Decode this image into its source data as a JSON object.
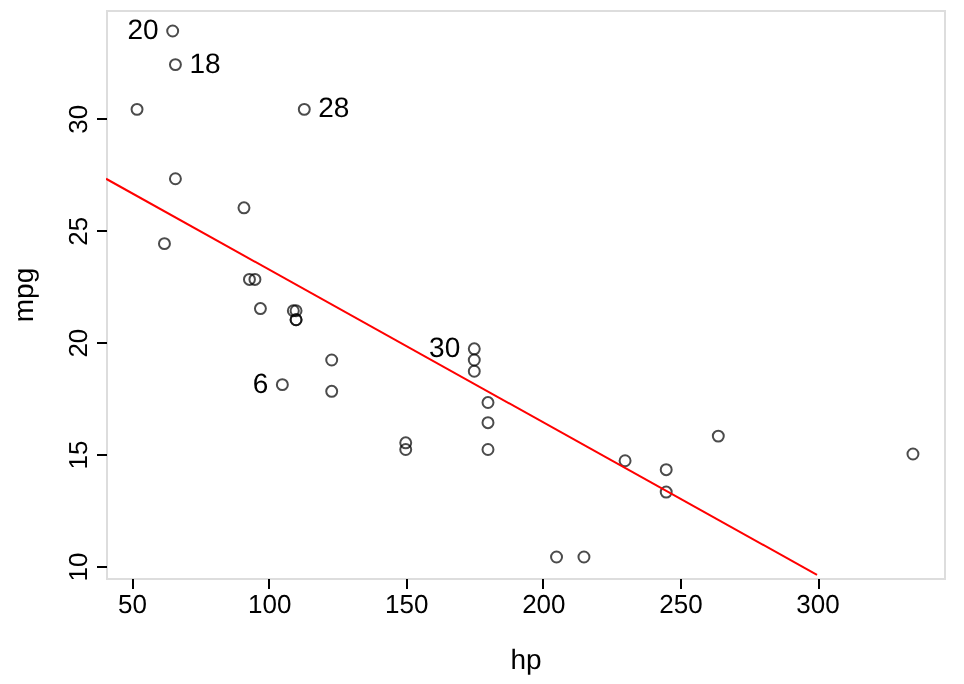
{
  "chart_data": {
    "type": "scatter",
    "xlabel": "hp",
    "ylabel": "mpg",
    "xlim": [
      40.68,
      346.32
    ],
    "xticks": [
      50,
      100,
      150,
      200,
      250,
      300
    ],
    "ylim": [
      9.46,
      34.84
    ],
    "yticks": [
      10,
      15,
      20,
      25,
      30
    ],
    "grid": false,
    "series": [
      {
        "marker": "circle",
        "color": "#000000",
        "x": [
          110,
          110,
          93,
          110,
          175,
          105,
          245,
          62,
          95,
          123,
          123,
          180,
          180,
          180,
          205,
          215,
          230,
          66,
          52,
          65,
          97,
          150,
          150,
          245,
          175,
          66,
          91,
          113,
          264,
          175,
          335,
          109
        ],
        "values": [
          21.0,
          21.0,
          22.8,
          21.4,
          18.7,
          18.1,
          14.3,
          24.4,
          22.8,
          19.2,
          17.8,
          16.4,
          17.3,
          15.2,
          10.4,
          10.4,
          14.7,
          32.4,
          30.4,
          33.9,
          21.5,
          15.5,
          15.2,
          13.3,
          19.2,
          27.3,
          26.0,
          30.4,
          15.8,
          19.7,
          15.0,
          21.4
        ]
      },
      {
        "type": "line",
        "line_style": "solid",
        "marker": "none",
        "color": "#ff0000",
        "x": [
          40.68,
          300
        ],
        "values": [
          27.3,
          9.6
        ]
      }
    ],
    "annotations": [
      {
        "text": "20",
        "x": 65,
        "y": 33.9
      },
      {
        "text": "18",
        "x": 66,
        "y": 32.4
      },
      {
        "text": "28",
        "x": 113,
        "y": 30.4
      },
      {
        "text": "30",
        "x": 175,
        "y": 19.7
      },
      {
        "text": "6",
        "x": 105,
        "y": 18.1
      }
    ]
  }
}
